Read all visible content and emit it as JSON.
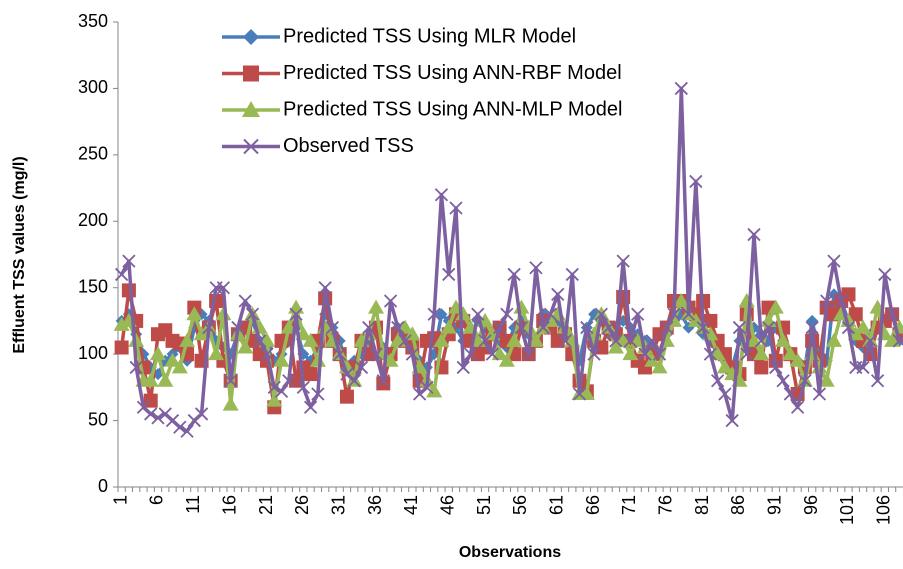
{
  "chart_data": {
    "type": "line",
    "x_label": "Observations",
    "y_label": "Effluent TSS values  (mg/l)",
    "categories": [
      "1",
      null,
      null,
      null,
      null,
      "6",
      null,
      null,
      null,
      null,
      "11",
      null,
      null,
      null,
      null,
      "16",
      null,
      null,
      null,
      null,
      "21",
      null,
      null,
      null,
      null,
      "26",
      null,
      null,
      null,
      null,
      "31",
      null,
      null,
      null,
      null,
      "36",
      null,
      null,
      null,
      null,
      "41",
      null,
      null,
      null,
      null,
      "46",
      null,
      null,
      null,
      null,
      "51",
      null,
      null,
      null,
      null,
      "56",
      null,
      null,
      null,
      null,
      "61",
      null,
      null,
      null,
      null,
      "66",
      null,
      null,
      null,
      null,
      "71",
      null,
      null,
      null,
      null,
      "76",
      null,
      null,
      null,
      null,
      "81",
      null,
      null,
      null,
      null,
      "86",
      null,
      null,
      null,
      null,
      "91",
      null,
      null,
      null,
      null,
      "96",
      null,
      null,
      null,
      null,
      "101",
      null,
      null,
      null,
      null,
      "106",
      null,
      null
    ],
    "ylim": [
      0,
      350
    ],
    "yticks": [
      0,
      50,
      100,
      150,
      200,
      250,
      300,
      350
    ],
    "series": [
      {
        "name": "Predicted TSS Using MLR Model",
        "color": "#4a7ebb",
        "marker": "diamond",
        "values": [
          125,
          130,
          115,
          100,
          90,
          85,
          95,
          100,
          105,
          95,
          120,
          130,
          125,
          110,
          105,
          100,
          115,
          120,
          125,
          110,
          105,
          95,
          100,
          110,
          120,
          100,
          95,
          105,
          130,
          120,
          110,
          90,
          95,
          100,
          110,
          115,
          105,
          100,
          120,
          115,
          110,
          95,
          90,
          100,
          130,
          125,
          120,
          110,
          115,
          125,
          120,
          115,
          110,
          105,
          120,
          125,
          115,
          110,
          130,
          120,
          125,
          115,
          100,
          95,
          120,
          130,
          125,
          115,
          120,
          125,
          120,
          115,
          110,
          105,
          100,
          115,
          125,
          130,
          120,
          125,
          115,
          110,
          100,
          95,
          90,
          110,
          105,
          120,
          115,
          110,
          120,
          110,
          100,
          95,
          90,
          125,
          100,
          95,
          145,
          140,
          125,
          110,
          105,
          115,
          120,
          125,
          130,
          110
        ]
      },
      {
        "name": "Predicted TSS Using ANN-RBF Model",
        "color": "#be4b48",
        "marker": "square",
        "values": [
          105,
          148,
          125,
          90,
          65,
          115,
          118,
          110,
          108,
          100,
          135,
          95,
          120,
          140,
          95,
          80,
          115,
          120,
          110,
          100,
          95,
          60,
          110,
          120,
          80,
          90,
          85,
          110,
          142,
          110,
          100,
          68,
          90,
          110,
          100,
          120,
          78,
          100,
          115,
          110,
          105,
          80,
          110,
          112,
          90,
          115,
          130,
          125,
          110,
          100,
          105,
          115,
          120,
          110,
          100,
          120,
          100,
          110,
          125,
          120,
          110,
          115,
          100,
          80,
          72,
          110,
          105,
          120,
          115,
          143,
          110,
          95,
          90,
          100,
          115,
          120,
          140,
          140,
          135,
          130,
          140,
          125,
          110,
          100,
          90,
          85,
          130,
          100,
          90,
          135,
          95,
          120,
          100,
          70,
          90,
          110,
          95,
          135,
          130,
          140,
          145,
          130,
          110,
          100,
          120,
          125,
          130,
          115
        ]
      },
      {
        "name": "Predicted TSS Using ANN-MLP Model",
        "color": "#98b954",
        "marker": "triangle",
        "values": [
          122,
          125,
          110,
          80,
          80,
          100,
          80,
          95,
          90,
          110,
          130,
          115,
          120,
          100,
          130,
          62,
          115,
          105,
          130,
          120,
          110,
          65,
          95,
          120,
          135,
          115,
          110,
          95,
          120,
          110,
          100,
          90,
          80,
          110,
          115,
          135,
          100,
          95,
          110,
          120,
          115,
          90,
          80,
          72,
          110,
          120,
          135,
          130,
          120,
          110,
          125,
          115,
          100,
          95,
          110,
          135,
          120,
          110,
          120,
          125,
          130,
          120,
          110,
          70,
          70,
          115,
          130,
          120,
          105,
          110,
          100,
          110,
          105,
          95,
          90,
          110,
          125,
          140,
          130,
          125,
          120,
          115,
          100,
          90,
          85,
          80,
          140,
          110,
          100,
          125,
          135,
          110,
          100,
          95,
          80,
          100,
          90,
          80,
          110,
          130,
          125,
          115,
          120,
          110,
          135,
          115,
          110,
          120
        ]
      },
      {
        "name": "Observed TSS",
        "color": "#7d60a0",
        "marker": "x",
        "values": [
          160,
          170,
          90,
          60,
          55,
          52,
          55,
          50,
          45,
          42,
          50,
          55,
          120,
          150,
          150,
          80,
          120,
          140,
          130,
          110,
          100,
          75,
          72,
          80,
          130,
          75,
          60,
          70,
          150,
          120,
          100,
          85,
          80,
          90,
          120,
          100,
          80,
          140,
          120,
          110,
          100,
          70,
          75,
          130,
          220,
          160,
          210,
          90,
          100,
          130,
          110,
          100,
          120,
          130,
          160,
          120,
          100,
          165,
          120,
          130,
          145,
          110,
          160,
          70,
          120,
          100,
          130,
          120,
          110,
          170,
          110,
          130,
          100,
          110,
          100,
          120,
          130,
          300,
          130,
          230,
          120,
          100,
          80,
          70,
          50,
          120,
          100,
          190,
          110,
          120,
          90,
          80,
          70,
          60,
          80,
          120,
          70,
          140,
          170,
          140,
          120,
          90,
          90,
          110,
          80,
          160,
          130,
          110
        ]
      }
    ]
  }
}
